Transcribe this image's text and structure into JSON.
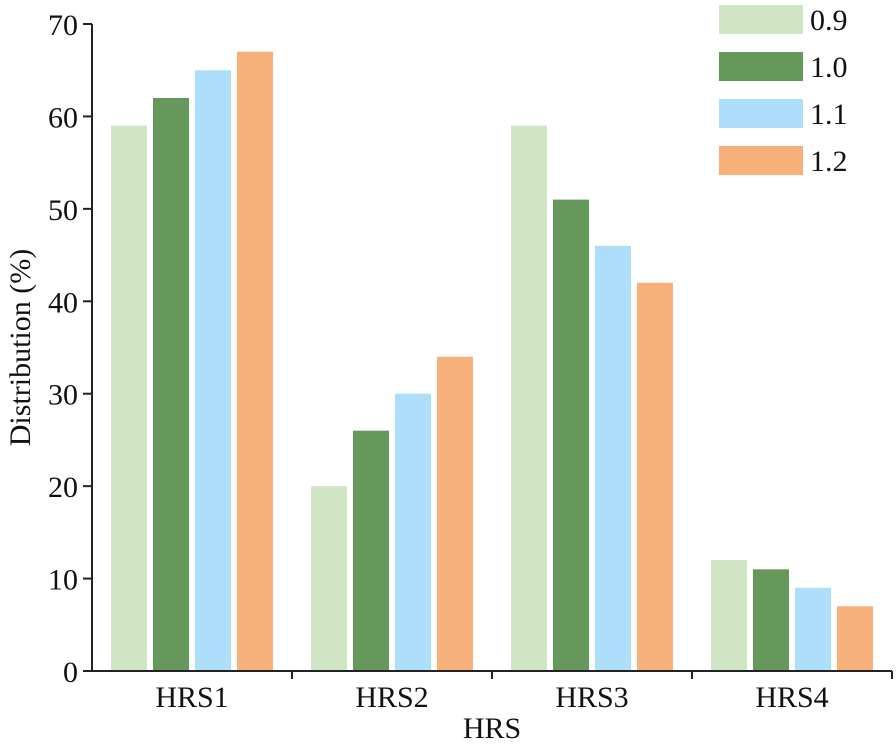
{
  "chart_data": {
    "type": "bar",
    "title": "",
    "xlabel": "HRS",
    "ylabel": "Distribution (%)",
    "categories": [
      "HRS1",
      "HRS2",
      "HRS3",
      "HRS4"
    ],
    "ylim": [
      0,
      70
    ],
    "yticks": [
      0,
      10,
      20,
      30,
      40,
      50,
      60,
      70
    ],
    "grid": false,
    "legend_position": "top-right",
    "series": [
      {
        "name": "0.9",
        "color": "#cfe5c4",
        "values": [
          59,
          20,
          59,
          12
        ]
      },
      {
        "name": "1.0",
        "color": "#66985c",
        "values": [
          62,
          26,
          51,
          11
        ]
      },
      {
        "name": "1.1",
        "color": "#aedffa",
        "values": [
          65,
          30,
          46,
          9
        ]
      },
      {
        "name": "1.2",
        "color": "#f8b07a",
        "values": [
          67,
          34,
          42,
          7
        ]
      }
    ]
  }
}
